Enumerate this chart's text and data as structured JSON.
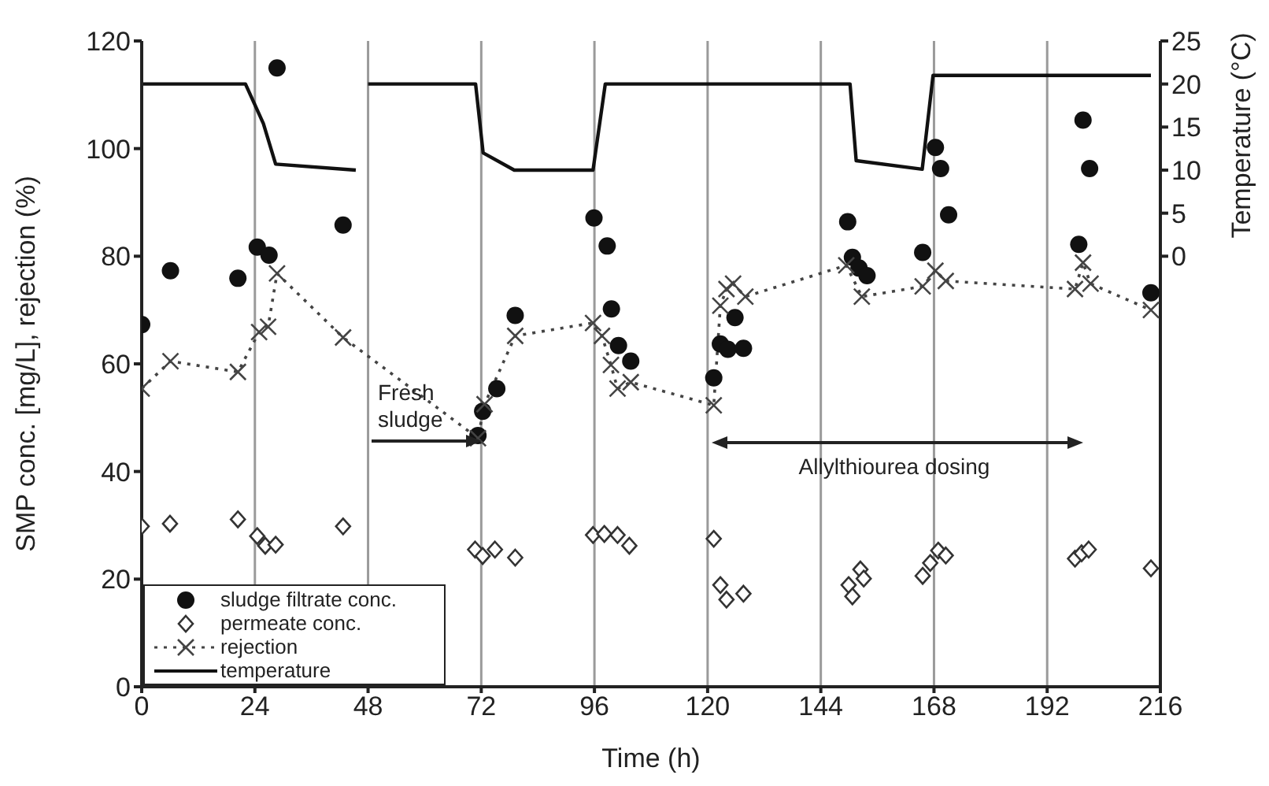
{
  "chart_data": {
    "type": "scatter",
    "xlabel": "Time (h)",
    "ylabel": "SMP conc. [mg/L], rejection (%)",
    "y2label": "Temperature (°C)",
    "xlim": [
      0,
      216
    ],
    "xticks": [
      0,
      24,
      48,
      72,
      96,
      120,
      144,
      168,
      192,
      216
    ],
    "ylim": [
      0,
      120
    ],
    "yticks": [
      0,
      20,
      40,
      60,
      80,
      100,
      120
    ],
    "y2lim": [
      -50,
      25
    ],
    "y2ticks": [
      0,
      5,
      10,
      15,
      20,
      25
    ],
    "grid": "x",
    "legend": "bottom left",
    "series": [
      {
        "name": "sludge filtrate conc.",
        "marker": "circle",
        "color": "#111111",
        "x": [
          0,
          6.1,
          20.4,
          24.5,
          27,
          28.7,
          42.7,
          71.3,
          72.3,
          75.3,
          79.2,
          95.9,
          98.7,
          99.6,
          101.1,
          103.7,
          121.3,
          122.7,
          124.3,
          125.8,
          127.6,
          149.7,
          150.7,
          152.1,
          153.8,
          165.6,
          168.3,
          169.4,
          171.1,
          198.7,
          199.6,
          201,
          214
        ],
        "values": [
          67.3,
          77.3,
          75.9,
          81.7,
          80.2,
          115,
          85.8,
          46.7,
          51.2,
          55.4,
          69,
          87.1,
          81.9,
          70.2,
          63.4,
          60.5,
          57.4,
          63.7,
          62.7,
          68.6,
          62.9,
          86.4,
          79.8,
          77.8,
          76.4,
          80.7,
          100.2,
          96.3,
          87.7,
          82.2,
          105.3,
          96.3,
          73.2
        ]
      },
      {
        "name": "permeate conc.",
        "marker": "diamond",
        "color": "#333333",
        "x": [
          0,
          6,
          20.4,
          24.5,
          26.2,
          28.4,
          42.7,
          70.7,
          72.3,
          74.9,
          79.2,
          95.7,
          98.1,
          100.9,
          103.4,
          121.3,
          122.7,
          124,
          127.6,
          149.9,
          150.7,
          152.4,
          153.1,
          165.6,
          167.2,
          168.9,
          170.5,
          197.9,
          199.3,
          200.8,
          214
        ],
        "values": [
          29.8,
          30.3,
          31.1,
          28,
          26.2,
          26.4,
          29.8,
          25.5,
          24.3,
          25.5,
          24,
          28.2,
          28.4,
          28.2,
          26.2,
          27.5,
          18.9,
          16.2,
          17.3,
          18.9,
          16.8,
          21.8,
          20.1,
          20.6,
          23,
          25.3,
          24.4,
          23.8,
          24.8,
          25.5,
          22
        ]
      },
      {
        "name": "rejection",
        "type": "line",
        "marker": "cross",
        "line_style": "dotted",
        "color": "#444444",
        "x": [
          0,
          6.1,
          20.4,
          24.9,
          26.8,
          28.7,
          42.7,
          71.3,
          72.7,
          79.2,
          95.7,
          97.6,
          99.5,
          100.9,
          103.7,
          121.3,
          122.7,
          124,
          125.4,
          128,
          149.4,
          152.7,
          165.6,
          168.3,
          170.5,
          197.9,
          199.6,
          201.2,
          214
        ],
        "values": [
          55.4,
          60.5,
          58.5,
          65.9,
          66.9,
          76.8,
          64.9,
          46.2,
          52.5,
          65.2,
          67.6,
          65.2,
          59.8,
          55.4,
          56.6,
          52.3,
          70.8,
          73.9,
          74.9,
          72.5,
          78.3,
          72.5,
          74.4,
          77.3,
          75.4,
          73.9,
          78.8,
          74.9,
          70
        ]
      },
      {
        "name": "temperature",
        "type": "line",
        "marker": "none",
        "line_style": "solid",
        "axis": "y2",
        "color": "#111111",
        "x": [
          0,
          22,
          25.8,
          28.4,
          45.4,
          46.5,
          48,
          70.8,
          72.4,
          79,
          95.7,
          98.3,
          150.2,
          151.5,
          165.5,
          167.8,
          214
        ],
        "values": [
          20,
          20,
          15.4,
          10.7,
          10,
          null,
          20,
          20,
          12,
          10,
          10,
          20,
          20,
          11.1,
          10.1,
          21,
          21
        ]
      }
    ],
    "annotations": [
      "Fresh sludge",
      "Allylthiourea dosing"
    ]
  }
}
